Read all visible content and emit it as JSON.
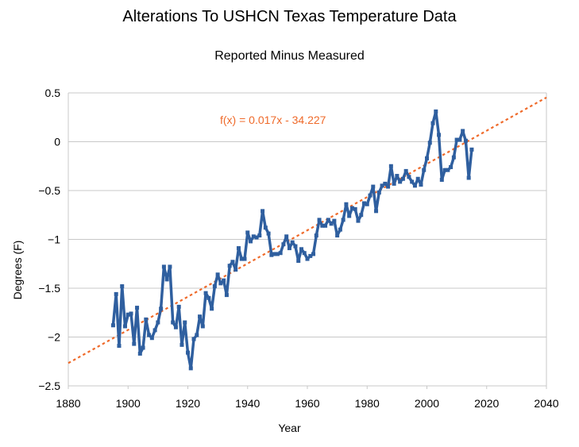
{
  "chart_data": {
    "type": "line",
    "title": "Alterations To USHCN Texas Temperature Data",
    "subtitle": "Reported Minus Measured",
    "xlabel": "Year",
    "ylabel": "Degrees (F)",
    "xlim": [
      1880,
      2040
    ],
    "ylim": [
      -2.5,
      0.5
    ],
    "xticks": [
      1880,
      1900,
      1920,
      1940,
      1960,
      1980,
      2000,
      2020,
      2040
    ],
    "yticks": [
      0.5,
      0,
      -0.5,
      -1,
      -1.5,
      -2,
      -2.5
    ],
    "grid": "horizontal",
    "colors": {
      "series": "#2f5f9f",
      "trend": "#ef6a2a",
      "grid": "#c8c8c8"
    },
    "trendline": {
      "label": "f(x) = 0.017x - 34.227",
      "slope": 0.017,
      "intercept": -34.227
    },
    "series": [
      {
        "x": [
          1895,
          1896,
          1897,
          1898,
          1899,
          1900,
          1901,
          1902,
          1903,
          1904,
          1905,
          1906,
          1907,
          1908,
          1909,
          1910,
          1911,
          1912,
          1913,
          1914,
          1915,
          1916,
          1917,
          1918,
          1919,
          1920,
          1921,
          1922,
          1923,
          1924,
          1925,
          1926,
          1927,
          1928,
          1929,
          1930,
          1931,
          1932,
          1933,
          1934,
          1935,
          1936,
          1937,
          1938,
          1939,
          1940,
          1941,
          1942,
          1943,
          1944,
          1945,
          1946,
          1947,
          1948,
          1949,
          1950,
          1951,
          1952,
          1953,
          1954,
          1955,
          1956,
          1957,
          1958,
          1959,
          1960,
          1961,
          1962,
          1963,
          1964,
          1965,
          1966,
          1967,
          1968,
          1969,
          1970,
          1971,
          1972,
          1973,
          1974,
          1975,
          1976,
          1977,
          1978,
          1979,
          1980,
          1981,
          1982,
          1983,
          1984,
          1985,
          1986,
          1987,
          1988,
          1989,
          1990,
          1991,
          1992,
          1993,
          1994,
          1995,
          1996,
          1997,
          1998,
          1999,
          2000,
          2001,
          2002,
          2003,
          2004,
          2005,
          2006,
          2007,
          2008,
          2009,
          2010,
          2011,
          2012,
          2013,
          2014,
          2015
        ],
        "y": [
          -1.88,
          -1.56,
          -2.09,
          -1.48,
          -1.89,
          -1.77,
          -1.76,
          -2.07,
          -1.7,
          -2.17,
          -2.11,
          -1.82,
          -1.98,
          -2.01,
          -1.93,
          -1.85,
          -1.71,
          -1.28,
          -1.41,
          -1.28,
          -1.85,
          -1.9,
          -1.69,
          -2.08,
          -1.85,
          -2.16,
          -2.32,
          -2.02,
          -1.98,
          -1.79,
          -1.89,
          -1.55,
          -1.6,
          -1.71,
          -1.48,
          -1.36,
          -1.45,
          -1.42,
          -1.57,
          -1.27,
          -1.23,
          -1.31,
          -1.09,
          -1.2,
          -1.2,
          -0.93,
          -1.02,
          -0.97,
          -0.98,
          -0.96,
          -0.71,
          -0.88,
          -0.94,
          -1.16,
          -1.15,
          -1.15,
          -1.14,
          -1.05,
          -0.97,
          -1.09,
          -1.03,
          -1.07,
          -1.22,
          -1.1,
          -1.14,
          -1.2,
          -1.17,
          -1.15,
          -0.96,
          -0.8,
          -0.86,
          -0.86,
          -0.8,
          -0.84,
          -0.81,
          -0.96,
          -0.9,
          -0.8,
          -0.64,
          -0.76,
          -0.68,
          -0.69,
          -0.81,
          -0.75,
          -0.63,
          -0.64,
          -0.55,
          -0.46,
          -0.71,
          -0.52,
          -0.45,
          -0.43,
          -0.46,
          -0.25,
          -0.43,
          -0.35,
          -0.41,
          -0.38,
          -0.3,
          -0.36,
          -0.41,
          -0.45,
          -0.38,
          -0.44,
          -0.29,
          -0.17,
          -0.01,
          0.19,
          0.31,
          0.07,
          -0.39,
          -0.29,
          -0.29,
          -0.26,
          -0.16,
          0.02,
          0.02,
          0.11,
          0.01,
          -0.37,
          -0.08
        ]
      }
    ]
  }
}
